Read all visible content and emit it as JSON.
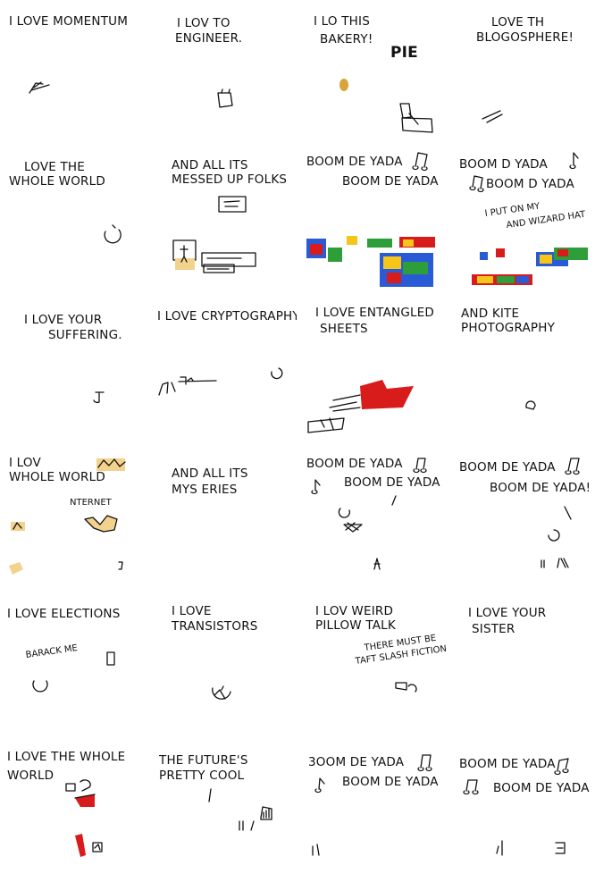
{
  "panels": [
    {
      "id": "p01",
      "lines": [
        "I LOVE MOMENTUM"
      ]
    },
    {
      "id": "p02",
      "lines": [
        "I LOV   TO",
        "ENGINEER."
      ]
    },
    {
      "id": "p03",
      "lines": [
        "I LO    THIS",
        "BAKERY!",
        "PIE"
      ]
    },
    {
      "id": "p04",
      "lines": [
        "LOVE TH",
        "BLOGOSPHERE!"
      ]
    },
    {
      "id": "p05",
      "lines": [
        "LOVE THE",
        "WHOLE WORLD"
      ]
    },
    {
      "id": "p06",
      "lines": [
        "AND ALL ITS",
        "MESSED UP FOLKS"
      ]
    },
    {
      "id": "p07",
      "lines": [
        "BOOM DE YADA",
        "BOOM DE YADA"
      ]
    },
    {
      "id": "p08",
      "lines": [
        "BOOM D   YADA",
        "BOOM D   YADA",
        "I PUT ON MY",
        "AND WIZARD HAT"
      ]
    },
    {
      "id": "p09",
      "lines": [
        "I LOVE YOUR",
        "SUFFERING."
      ]
    },
    {
      "id": "p10",
      "lines": [
        "I LOVE CRYPTOGRAPHY."
      ]
    },
    {
      "id": "p11",
      "lines": [
        "I LOVE ENTANGLED",
        "SHEETS"
      ]
    },
    {
      "id": "p12",
      "lines": [
        "AND KITE",
        "PHOTOGRAPHY"
      ]
    },
    {
      "id": "p13",
      "lines": [
        "I LOV",
        "WHOLE WORLD",
        "NTERNET"
      ]
    },
    {
      "id": "p14",
      "lines": [
        "AND ALL ITS",
        "MYS ERIES"
      ]
    },
    {
      "id": "p15",
      "lines": [
        "BOOM DE  YADA",
        "BOOM DE  YADA"
      ]
    },
    {
      "id": "p16",
      "lines": [
        "BOOM DE YADA",
        "BOOM DE YADA!"
      ]
    },
    {
      "id": "p17",
      "lines": [
        "I LOVE ELECTIONS",
        "BARACK ME"
      ]
    },
    {
      "id": "p18",
      "lines": [
        "I LOVE",
        "TRANSISTORS"
      ]
    },
    {
      "id": "p19",
      "lines": [
        "I LOV   WEIRD",
        "PILLOW TALK",
        "THERE MUST BE",
        "TAFT SLASH FICTION."
      ]
    },
    {
      "id": "p20",
      "lines": [
        "I LOVE YOUR",
        "SISTER"
      ]
    },
    {
      "id": "p21",
      "lines": [
        "I LOVE THE WHOLE",
        "WORLD"
      ]
    },
    {
      "id": "p22",
      "lines": [
        "THE FUTURE'S",
        "PRETTY COOL"
      ]
    },
    {
      "id": "p23",
      "lines": [
        "3OOM DE YADA",
        "BOOM DE YADA"
      ]
    },
    {
      "id": "p24",
      "lines": [
        "BOOM DE YADA",
        "BOOM DE YADA"
      ]
    }
  ],
  "colors": {
    "ink": "#111111",
    "skin": "#f2d28c",
    "red": "#d81b1b",
    "blue": "#2a5bd7",
    "green": "#2e9e3a",
    "yellow": "#f5c518",
    "gold": "#d9a43a"
  },
  "icons": [
    "music-note-icon",
    "double-music-note-icon"
  ]
}
